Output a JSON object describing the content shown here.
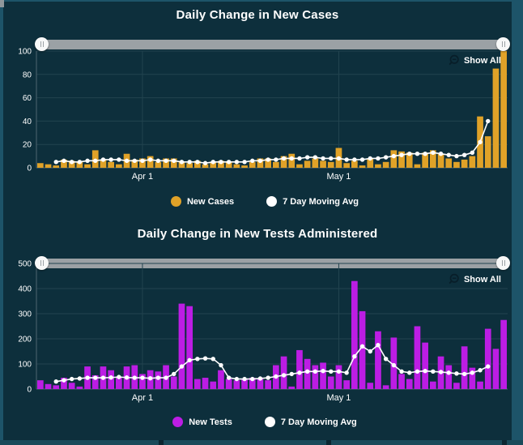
{
  "ui": {
    "show_all_label": "Show All",
    "colors": {
      "panel_background": "#0d2f3c",
      "outer_border": "#1d5469",
      "slider_track": "#9ba1a5",
      "slider_handle": "#f7f8f8",
      "grid_line": "#22434f",
      "axis_line": "#4e6570",
      "axis_text": "#ffffff"
    }
  },
  "chart_data": [
    {
      "type": "bar",
      "title": "Daily Change in New Cases",
      "ylim": [
        0,
        100
      ],
      "yticks": [
        0,
        20,
        40,
        60,
        80,
        100
      ],
      "x_tick_labels": [
        {
          "label": "Apr 1",
          "index": 13
        },
        {
          "label": "May 1",
          "index": 38
        }
      ],
      "grid": true,
      "legend_position": "bottom",
      "bar_series": {
        "name": "New Cases",
        "color": "#e0a228",
        "values": [
          4,
          3,
          2,
          7,
          6,
          5,
          3,
          15,
          7,
          5,
          3,
          12,
          7,
          8,
          10,
          5,
          8,
          8,
          5,
          4,
          6,
          3,
          5,
          6,
          5,
          3,
          2,
          5,
          8,
          8,
          5,
          10,
          12,
          3,
          6,
          8,
          6,
          5,
          17,
          4,
          6,
          2,
          8,
          3,
          5,
          15,
          14,
          13,
          3,
          13,
          15,
          12,
          8,
          5,
          7,
          10,
          44,
          27,
          85,
          100
        ]
      },
      "line_series": {
        "name": "7 Day Moving Avg",
        "color": "#ffffff",
        "values": [
          null,
          null,
          5,
          6,
          5,
          5,
          6,
          6,
          7,
          7,
          7,
          6,
          6,
          6,
          7,
          6,
          6,
          6,
          5,
          5,
          5,
          4,
          5,
          5,
          5,
          5,
          5,
          6,
          6,
          7,
          7,
          8,
          8,
          8,
          9,
          9,
          8,
          8,
          8,
          7,
          7,
          7,
          8,
          8,
          9,
          10,
          11,
          12,
          12,
          12,
          13,
          12,
          11,
          10,
          11,
          13,
          22,
          40,
          null,
          null
        ]
      }
    },
    {
      "type": "bar",
      "title": "Daily Change in New Tests Administered",
      "ylim": [
        0,
        500
      ],
      "yticks": [
        0,
        100,
        200,
        300,
        400,
        500
      ],
      "x_tick_labels": [
        {
          "label": "Apr 1",
          "index": 13
        },
        {
          "label": "May 1",
          "index": 38
        }
      ],
      "grid": true,
      "legend_position": "bottom",
      "bar_series": {
        "name": "New Tests",
        "color": "#bc1de4",
        "values": [
          35,
          20,
          15,
          45,
          25,
          10,
          90,
          55,
          90,
          75,
          50,
          90,
          95,
          60,
          75,
          70,
          95,
          50,
          340,
          330,
          40,
          45,
          30,
          75,
          40,
          35,
          40,
          45,
          40,
          35,
          95,
          130,
          10,
          155,
          120,
          95,
          105,
          50,
          95,
          35,
          430,
          310,
          25,
          230,
          15,
          205,
          60,
          40,
          250,
          185,
          30,
          130,
          95,
          25,
          170,
          85,
          30,
          240,
          160,
          275
        ]
      },
      "line_series": {
        "name": "7 Day Moving Avg",
        "color": "#ffffff",
        "values": [
          null,
          null,
          30,
          35,
          40,
          42,
          45,
          45,
          45,
          46,
          48,
          46,
          45,
          45,
          43,
          45,
          45,
          60,
          90,
          115,
          120,
          122,
          120,
          95,
          45,
          40,
          40,
          40,
          42,
          45,
          50,
          55,
          60,
          65,
          70,
          70,
          72,
          70,
          70,
          65,
          130,
          170,
          150,
          175,
          120,
          95,
          70,
          65,
          70,
          72,
          70,
          68,
          65,
          62,
          60,
          65,
          75,
          90,
          null,
          null
        ]
      }
    }
  ]
}
